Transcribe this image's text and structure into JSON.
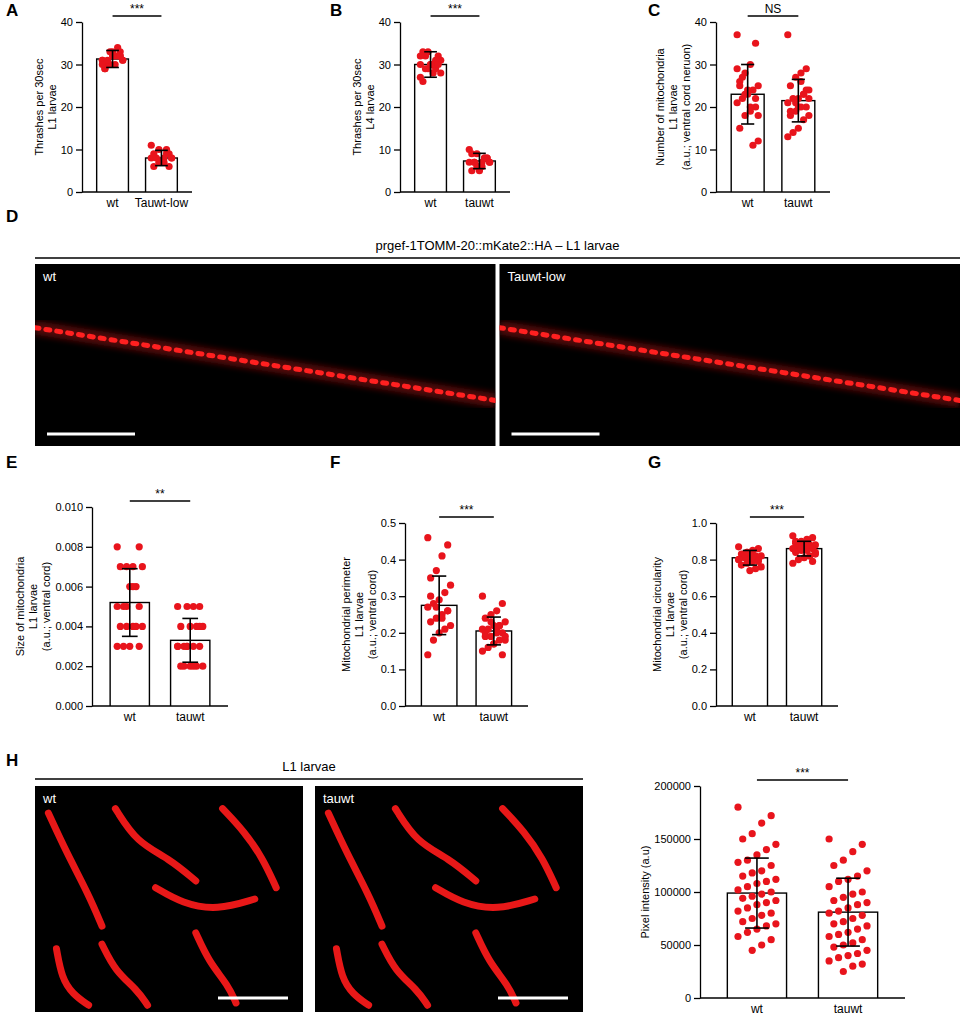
{
  "chart_data": [
    {
      "type": "bar",
      "panel": "A",
      "ylabel": [
        "Thrashes per 30sec",
        "L1 larvae"
      ],
      "annotation": "***",
      "categories": [
        "wt",
        "Tauwt-low"
      ],
      "values": [
        31.3,
        8.0
      ],
      "errors": [
        2.0,
        1.8
      ],
      "points": [
        [
          31,
          32,
          30,
          33,
          29,
          31,
          34,
          32,
          30,
          31,
          33,
          32,
          30,
          29,
          31,
          32,
          33,
          31,
          30,
          32
        ],
        [
          8,
          9,
          7,
          10,
          6,
          8,
          9,
          7,
          8,
          11,
          6,
          8,
          7,
          9,
          8,
          10,
          7
        ]
      ],
      "color": "#e8141c",
      "ylim": [
        0,
        40
      ],
      "yticks": [
        0,
        10,
        20,
        30,
        40
      ]
    },
    {
      "type": "bar",
      "panel": "B",
      "ylabel": [
        "Thrashes per 30sec",
        "L4 larvae"
      ],
      "annotation": "***",
      "categories": [
        "wt",
        "tauwt"
      ],
      "values": [
        30.0,
        7.3
      ],
      "errors": [
        3.0,
        1.8
      ],
      "points": [
        [
          30,
          32,
          28,
          33,
          26,
          31,
          29,
          30,
          32,
          27,
          31,
          30,
          29,
          33,
          28,
          31,
          30,
          29,
          32,
          30
        ],
        [
          7,
          8,
          6,
          9,
          5,
          7,
          8,
          6,
          7,
          10,
          8,
          7,
          6,
          9,
          7,
          8,
          5,
          7
        ]
      ],
      "color": "#e8141c",
      "ylim": [
        0,
        40
      ],
      "yticks": [
        0,
        10,
        20,
        30,
        40
      ]
    },
    {
      "type": "bar",
      "panel": "C",
      "ylabel": [
        "Number of mitochondria",
        "L1 larvae",
        "(a.u.; ventral cord neruon)"
      ],
      "annotation": "NS",
      "categories": [
        "wt",
        "tauwt"
      ],
      "values": [
        23.0,
        21.5
      ],
      "errors": [
        7.0,
        5.0
      ],
      "points": [
        [
          37,
          35,
          30,
          28,
          26,
          25,
          24,
          23,
          22,
          21,
          20,
          19,
          18,
          15,
          12,
          11,
          24,
          27,
          29,
          22,
          20,
          23,
          25,
          18
        ],
        [
          37,
          29,
          28,
          27,
          25,
          24,
          23,
          22,
          22,
          21,
          20,
          20,
          19,
          18,
          18,
          17,
          15,
          14,
          13,
          24,
          26,
          21,
          19,
          22,
          23,
          20
        ]
      ],
      "color": "#e8141c",
      "ylim": [
        0,
        40
      ],
      "yticks": [
        0,
        10,
        20,
        30,
        40
      ]
    },
    {
      "type": "bar",
      "panel": "E",
      "ylabel": [
        "Size of mitochondria",
        "L1 larvae",
        "(a.u.; ventral cord)"
      ],
      "annotation": "**",
      "categories": [
        "wt",
        "tauwt"
      ],
      "values": [
        0.0052,
        0.0033
      ],
      "errors": [
        0.0017,
        0.0011
      ],
      "points": [
        [
          0.008,
          0.008,
          0.007,
          0.007,
          0.007,
          0.007,
          0.006,
          0.006,
          0.005,
          0.005,
          0.005,
          0.004,
          0.004,
          0.004,
          0.004,
          0.004,
          0.003,
          0.003,
          0.003,
          0.003,
          0.006,
          0.005
        ],
        [
          0.005,
          0.005,
          0.005,
          0.005,
          0.004,
          0.004,
          0.004,
          0.004,
          0.003,
          0.003,
          0.003,
          0.003,
          0.003,
          0.002,
          0.002,
          0.002,
          0.002,
          0.002,
          0.003,
          0.004,
          0.002,
          0.003
        ]
      ],
      "color": "#e8141c",
      "ylim": [
        0,
        0.01
      ],
      "yticks": [
        {
          "value": 0,
          "label": "0.000"
        },
        {
          "value": 0.002,
          "label": "0.002"
        },
        {
          "value": 0.004,
          "label": "0.004"
        },
        {
          "value": 0.006,
          "label": "0.006"
        },
        {
          "value": 0.008,
          "label": "0.008"
        },
        {
          "value": 0.01,
          "label": "0.010"
        }
      ]
    },
    {
      "type": "bar",
      "panel": "F",
      "ylabel": [
        "Mitochondrial perimeter",
        "L1 larvae",
        "(a.u.; ventral cord)"
      ],
      "annotation": "***",
      "categories": [
        "wt",
        "tauwt"
      ],
      "values": [
        0.275,
        0.205
      ],
      "errors": [
        0.08,
        0.038
      ],
      "points": [
        [
          0.46,
          0.44,
          0.41,
          0.37,
          0.35,
          0.33,
          0.31,
          0.29,
          0.28,
          0.27,
          0.26,
          0.25,
          0.24,
          0.23,
          0.22,
          0.21,
          0.2,
          0.18,
          0.14,
          0.26,
          0.24,
          0.27,
          0.3
        ],
        [
          0.3,
          0.28,
          0.26,
          0.25,
          0.24,
          0.23,
          0.22,
          0.22,
          0.21,
          0.21,
          0.2,
          0.2,
          0.19,
          0.19,
          0.18,
          0.18,
          0.17,
          0.16,
          0.15,
          0.14,
          0.21,
          0.23,
          0.2,
          0.19,
          0.22,
          0.17
        ]
      ],
      "color": "#e8141c",
      "ylim": [
        0,
        0.5
      ],
      "yticks": [
        {
          "value": 0,
          "label": "0.0"
        },
        0.1,
        0.2,
        0.3,
        0.4,
        0.5
      ]
    },
    {
      "type": "bar",
      "panel": "G",
      "ylabel": [
        "Mitochondrial circularity",
        "L1 larvae",
        "(a.u.; ventral cord)"
      ],
      "annotation": "***",
      "categories": [
        "wt",
        "tauwt"
      ],
      "values": [
        0.81,
        0.86
      ],
      "errors": [
        0.04,
        0.04
      ],
      "points": [
        [
          0.87,
          0.86,
          0.85,
          0.84,
          0.83,
          0.82,
          0.82,
          0.81,
          0.81,
          0.8,
          0.8,
          0.79,
          0.78,
          0.77,
          0.76,
          0.75,
          0.74,
          0.83,
          0.8,
          0.79,
          0.82,
          0.84
        ],
        [
          0.93,
          0.92,
          0.91,
          0.9,
          0.89,
          0.88,
          0.88,
          0.87,
          0.87,
          0.86,
          0.86,
          0.85,
          0.85,
          0.84,
          0.83,
          0.82,
          0.81,
          0.8,
          0.78,
          0.79,
          0.88,
          0.86,
          0.9,
          0.84
        ]
      ],
      "color": "#e8141c",
      "ylim": [
        0,
        1
      ],
      "yticks": [
        {
          "value": 0,
          "label": "0.0"
        },
        0.2,
        0.4,
        0.6,
        0.8,
        {
          "value": 1,
          "label": "1.0"
        }
      ]
    },
    {
      "type": "bar",
      "ylabel": [
        "Pixel intensity (a.u)"
      ],
      "annotation": "***",
      "categories": [
        "wt",
        "tauwt"
      ],
      "values": [
        99000,
        81000
      ],
      "errors": [
        33000,
        32000
      ],
      "points": [
        [
          180000,
          172000,
          165000,
          155000,
          150000,
          145000,
          140000,
          135000,
          130000,
          128000,
          125000,
          120000,
          118000,
          115000,
          112000,
          110000,
          108000,
          105000,
          102000,
          100000,
          98000,
          96000,
          94000,
          92000,
          90000,
          88000,
          85000,
          82000,
          80000,
          78000,
          75000,
          72000,
          70000,
          68000,
          65000,
          62000,
          58000,
          55000,
          50000,
          45000
        ],
        [
          150000,
          145000,
          138000,
          130000,
          125000,
          120000,
          115000,
          112000,
          110000,
          105000,
          100000,
          98000,
          95000,
          92000,
          90000,
          88000,
          85000,
          82000,
          80000,
          78000,
          75000,
          72000,
          70000,
          68000,
          65000,
          62000,
          60000,
          58000,
          55000,
          52000,
          50000,
          48000,
          45000,
          42000,
          40000,
          38000,
          35000,
          32000,
          30000,
          25000
        ]
      ],
      "color": "#e8141c",
      "ylim": [
        0,
        200000
      ],
      "yticks": [
        0,
        50000,
        100000,
        150000,
        200000
      ]
    }
  ],
  "images": [
    {
      "panel": "D",
      "title": "prgef-1TOMM-20::mKate2::HA – L1 larvae",
      "labels": [
        "wt",
        "Tauwt-low"
      ]
    },
    {
      "panel": "H",
      "title": "L1 larvae",
      "labels": [
        "wt",
        "tauwt"
      ]
    }
  ]
}
